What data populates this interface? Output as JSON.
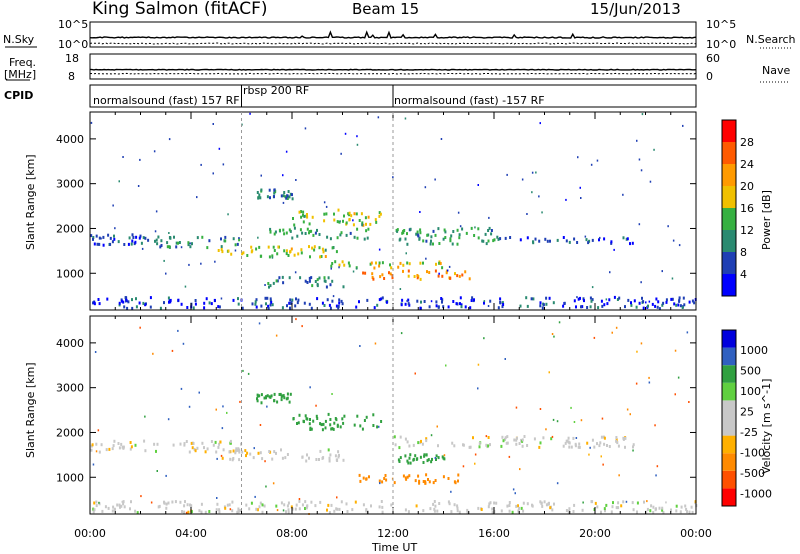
{
  "header": {
    "station": "King Salmon (fitACF)",
    "beam": "Beam 15",
    "date": "15/Jun/2013"
  },
  "strips": {
    "nsky_label": "N.Sky",
    "nsky_ticks": [
      "10^5",
      "10^0"
    ],
    "nsearch_label": "N.Search",
    "nsearch_ticks": [
      "10^5",
      "10^0"
    ],
    "freq_label": "Freq.",
    "freq_unit": "[MHz]",
    "freq_ticks": [
      "18",
      "8"
    ],
    "nave_label": "Nave",
    "nave_ticks": [
      "60",
      "0"
    ],
    "cpid_label": "CPID"
  },
  "cpid_segments": [
    {
      "label": "normalsound (fast) 157 RF",
      "start_hour": 0,
      "end_hour": 6
    },
    {
      "label": "rbsp 200 RF",
      "start_hour": 6,
      "end_hour": 12
    },
    {
      "label": "normalsound (fast) -157 RF",
      "start_hour": 12,
      "end_hour": 24
    }
  ],
  "colors": {
    "power_scale": [
      "#0000ff",
      "#1f3fb4",
      "#2a8a70",
      "#36b041",
      "#f0c000",
      "#ff9a00",
      "#ff5a00",
      "#ff0000"
    ],
    "velocity_scale": [
      "#ff0000",
      "#ff5000",
      "#ff8a00",
      "#ffb000",
      "#c8c8c8",
      "#c8c8c8",
      "#60d040",
      "#30a040",
      "#3060c0",
      "#0000dd"
    ]
  },
  "chart_data": [
    {
      "type": "heatmap",
      "name": "Power panel",
      "xlabel": "Time UT",
      "ylabel": "Slant Range [km]",
      "xlim": [
        0,
        24
      ],
      "ylim": [
        180,
        4600
      ],
      "xticks": [
        "00:00",
        "04:00",
        "08:00",
        "12:00",
        "16:00",
        "20:00",
        "00:00"
      ],
      "yticks": [
        "1000",
        "2000",
        "3000",
        "4000"
      ],
      "colorbar": {
        "label": "Power [dB]",
        "ticks": [
          "4",
          "8",
          "12",
          "16",
          "20",
          "24",
          "28"
        ],
        "range": [
          0,
          30
        ]
      },
      "echo_regions": [
        {
          "t": [
            0,
            2
          ],
          "range": [
            1600,
            1850
          ],
          "level": 6
        },
        {
          "t": [
            2,
            6
          ],
          "range": [
            1550,
            1800
          ],
          "level": 9
        },
        {
          "t": [
            5,
            10
          ],
          "range": [
            1350,
            1600
          ],
          "level": 15
        },
        {
          "t": [
            7,
            11
          ],
          "range": [
            1750,
            2000
          ],
          "level": 11
        },
        {
          "t": [
            8,
            11.5
          ],
          "range": [
            2050,
            2400
          ],
          "level": 15
        },
        {
          "t": [
            10.5,
            15
          ],
          "range": [
            850,
            1050
          ],
          "level": 22
        },
        {
          "t": [
            9.5,
            14
          ],
          "range": [
            1100,
            1250
          ],
          "level": 16
        },
        {
          "t": [
            6.5,
            8
          ],
          "range": [
            2650,
            2850
          ],
          "level": 8
        },
        {
          "t": [
            12,
            16
          ],
          "range": [
            1600,
            2000
          ],
          "level": 10
        },
        {
          "t": [
            16,
            21.5
          ],
          "range": [
            1650,
            1800
          ],
          "level": 5
        },
        {
          "t": [
            7,
            10
          ],
          "range": [
            650,
            900
          ],
          "level": 8
        },
        {
          "t": [
            0,
            24
          ],
          "range": [
            200,
            450
          ],
          "level": 5
        }
      ]
    },
    {
      "type": "heatmap",
      "name": "Velocity panel",
      "xlabel": "Time UT",
      "ylabel": "Slant Range [km]",
      "xlim": [
        0,
        24
      ],
      "ylim": [
        180,
        4600
      ],
      "xticks": [
        "00:00",
        "04:00",
        "08:00",
        "12:00",
        "16:00",
        "20:00",
        "00:00"
      ],
      "yticks": [
        "1000",
        "2000",
        "3000",
        "4000"
      ],
      "colorbar": {
        "label": "Velocity [m s^-1]",
        "ticks": [
          "1000",
          "500",
          "100",
          "25",
          "-25",
          "-100",
          "-500",
          "-1000"
        ]
      },
      "echo_regions": [
        {
          "t": [
            0,
            6
          ],
          "range": [
            1550,
            1800
          ],
          "velocity": 0
        },
        {
          "t": [
            5,
            10
          ],
          "range": [
            1350,
            1600
          ],
          "velocity": 0
        },
        {
          "t": [
            8,
            11.5
          ],
          "range": [
            2050,
            2400
          ],
          "velocity": 150
        },
        {
          "t": [
            10.5,
            15
          ],
          "range": [
            850,
            1050
          ],
          "velocity": -200
        },
        {
          "t": [
            12,
            14
          ],
          "range": [
            1300,
            1500
          ],
          "velocity": 300
        },
        {
          "t": [
            6.5,
            8
          ],
          "range": [
            2650,
            2850
          ],
          "velocity": 150
        },
        {
          "t": [
            12,
            21.5
          ],
          "range": [
            1650,
            1900
          ],
          "velocity": 0
        },
        {
          "t": [
            0,
            24
          ],
          "range": [
            200,
            450
          ],
          "velocity": 0
        }
      ]
    }
  ]
}
